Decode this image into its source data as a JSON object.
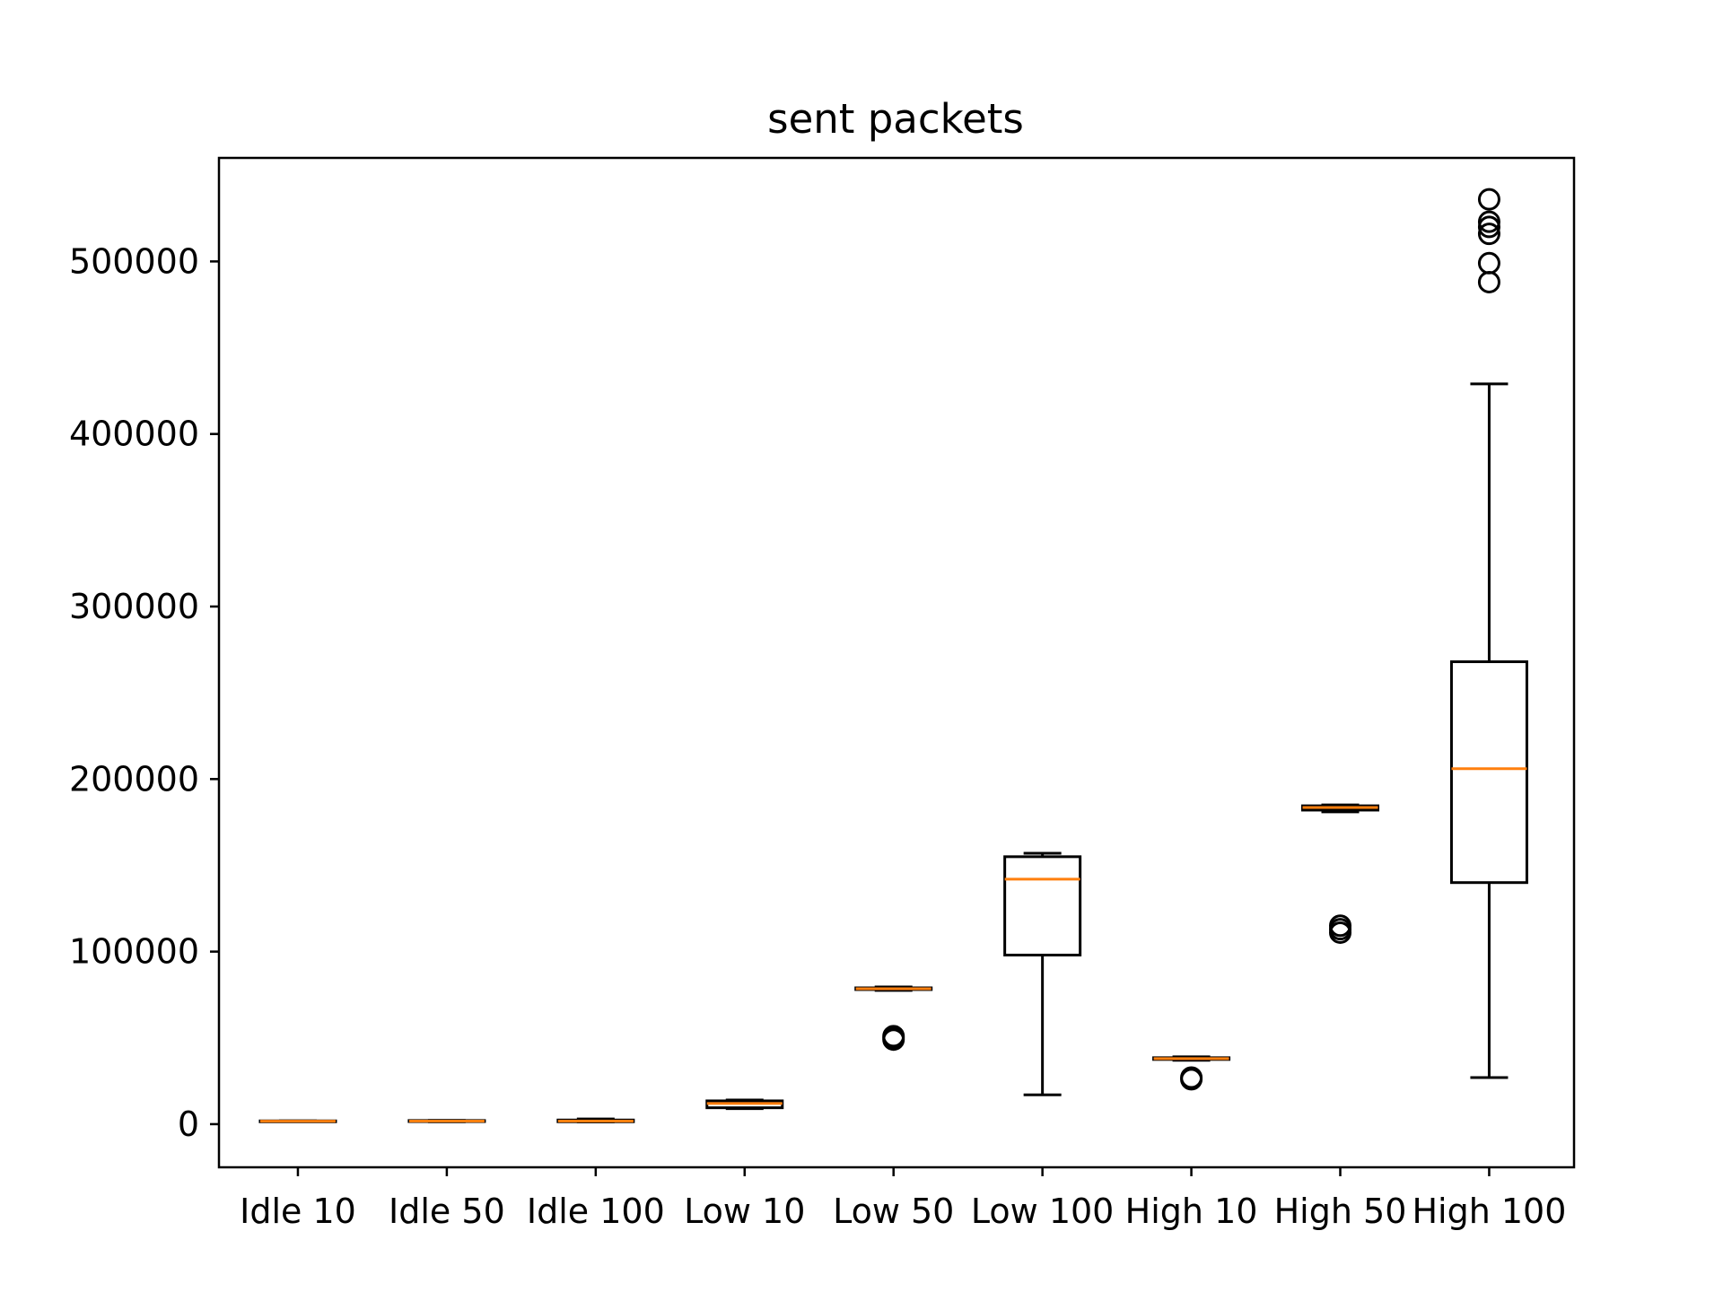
{
  "chart_data": {
    "type": "box",
    "title": "sent packets",
    "xlabel": "",
    "ylabel": "",
    "ylim": [
      -25000,
      560000
    ],
    "yticks": [
      0,
      100000,
      200000,
      300000,
      400000,
      500000
    ],
    "ytick_labels": [
      "0",
      "100000",
      "200000",
      "300000",
      "400000",
      "500000"
    ],
    "grid": false,
    "colors": {
      "box": "#000000",
      "median": "#ff7f0e"
    },
    "categories": [
      "Idle 10",
      "Idle 50",
      "Idle 100",
      "Low 10",
      "Low 50",
      "Low 100",
      "High 10",
      "High 50",
      "High 100"
    ],
    "boxes": [
      {
        "label": "Idle 10",
        "whisker_low": 1500,
        "q1": 1500,
        "median": 1700,
        "q3": 1900,
        "whisker_high": 1900,
        "outliers": []
      },
      {
        "label": "Idle 50",
        "whisker_low": 1400,
        "q1": 1500,
        "median": 1800,
        "q3": 2100,
        "whisker_high": 2200,
        "outliers": []
      },
      {
        "label": "Idle 100",
        "whisker_low": 1300,
        "q1": 1400,
        "median": 1800,
        "q3": 2400,
        "whisker_high": 3000,
        "outliers": []
      },
      {
        "label": "Low 10",
        "whisker_low": 9000,
        "q1": 9500,
        "median": 12000,
        "q3": 13500,
        "whisker_high": 14000,
        "outliers": []
      },
      {
        "label": "Low 50",
        "whisker_low": 77500,
        "q1": 78000,
        "median": 78500,
        "q3": 79000,
        "whisker_high": 79500,
        "outliers": [
          49000,
          50000,
          51000
        ]
      },
      {
        "label": "Low 100",
        "whisker_low": 17000,
        "q1": 98000,
        "median": 142000,
        "q3": 155000,
        "whisker_high": 157000,
        "outliers": []
      },
      {
        "label": "High 10",
        "whisker_low": 37000,
        "q1": 37500,
        "median": 38000,
        "q3": 38500,
        "whisker_high": 39000,
        "outliers": [
          26000,
          27000
        ]
      },
      {
        "label": "High 50",
        "whisker_low": 181000,
        "q1": 182000,
        "median": 183500,
        "q3": 184500,
        "whisker_high": 185000,
        "outliers": [
          111000,
          113000,
          115000
        ]
      },
      {
        "label": "High 100",
        "whisker_low": 27000,
        "q1": 140000,
        "median": 206000,
        "q3": 268000,
        "whisker_high": 429000,
        "outliers": [
          488000,
          499000,
          516000,
          520000,
          523000,
          536000
        ]
      }
    ]
  }
}
